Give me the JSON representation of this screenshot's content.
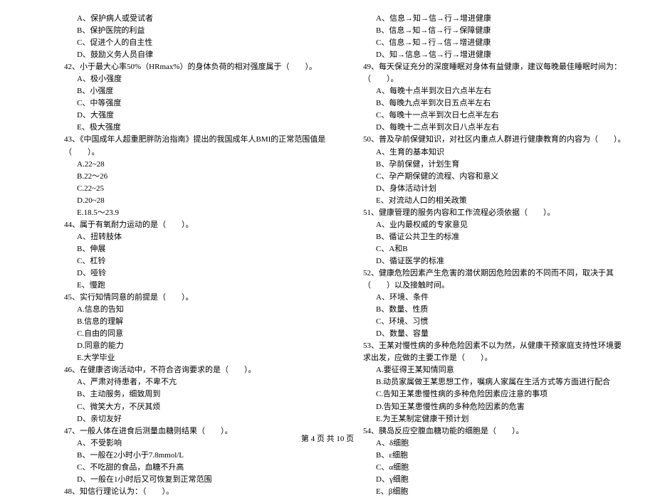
{
  "left": {
    "q41_opts": [
      "A、保护病人或受试者",
      "B、保护医院的利益",
      "C、促进个人的自主性",
      "D、鼓励义务人员自律"
    ],
    "q42": "42、小于最大心率50%（HRmax%）的身体负荷的相对强度属于（　　）。",
    "q42_opts": [
      "A、极小强度",
      "B、小强度",
      "C、中等强度",
      "D、大强度",
      "E、极大强度"
    ],
    "q43": "43、《中国成年人超重肥胖防治指南》提出的我国成年人BMI的正常范围值是（　　）。",
    "q43_opts": [
      "A.22~28",
      "B.22～26",
      "C.22~25",
      "D.20~28",
      "E.18.5～23.9"
    ],
    "q44": "44、属于有氧耐力运动的是（　　）。",
    "q44_opts": [
      "A、扭转肢体",
      "B、伸展",
      "C、杠铃",
      "D、哑铃",
      "E、慢跑"
    ],
    "q45": "45、实行知情同意的前提是（　　）。",
    "q45_opts": [
      "A.信息的告知",
      "B.信息的理解",
      "C.自由的同意",
      "D.同意的能力",
      "E.大学毕业"
    ],
    "q46": "46、在健康咨询活动中，不符合咨询要求的是（　　）。",
    "q46_opts": [
      "A、严肃对待患者，不卑不亢",
      "B、主动服务，细致周到",
      "C、微笑大方，不厌其烦",
      "D、亲切友好"
    ],
    "q47": "47、一般人体在进食后测量血糖则结果（　　）。",
    "q47_opts": [
      "A、不受影响",
      "B、一般在2小时小于7.8mmol/L",
      "C、不吃甜的食品，血糖不升高",
      "D、一般在1小时后又可恢复到正常范围"
    ],
    "q48": "48、知信行理论认为：（　　）。"
  },
  "right": {
    "q48_opts": [
      "A、信息→知→信→行→增进健康",
      "B、信息→知→信→行→保障健康",
      "C、信息→知→行→信→增进健康",
      "D、知→信息→信→行→增进健康"
    ],
    "q49": "49、每天保证充分的深度睡眠对身体有益健康，建议每晚最佳睡眠时间为：（　　）。",
    "q49_opts": [
      "A、每晚十点半到次日六点半左右",
      "B、每晚九点半到次日五点半左右",
      "C、每晚十一点半到次日七点半左右",
      "D、每晚十二点半到次日八点半左右"
    ],
    "q50": "50、普及孕前保健知识，对社区内重点人群进行健康教育的内容为（　　）。",
    "q50_opts": [
      "A、生育的基本知识",
      "B、孕前保健，计划生育",
      "C、孕产期保健的流程、内容和意义",
      "D、身体活动计划",
      "E、对流动人口的相关政策"
    ],
    "q51": "51、健康管理的服务内容和工作流程必须依据（　　）。",
    "q51_opts": [
      "A、业内最权威的专家意见",
      "B、循证公共卫生的标准",
      "C、A和B",
      "D、循证医学的标准"
    ],
    "q52": "52、健康危险因素产生危害的潜伏期因危险因素的不同而不同，取决于其（　　）以及接触时间。",
    "q52_cont": "",
    "q52_opts": [
      "A、环境、条件",
      "B、数量、性质",
      "C、环境、习惯",
      "D、数量、容量"
    ],
    "q53": "53、王某对慢性病的多种危险因素不以为然，从健康干预家庭支持性环境要求出发，应做的主要工作是（　　）。",
    "q53_cont": "",
    "q53_opts": [
      "A.要征得王某知情同意",
      "B.动员家属做王某思想工作，嘱病人家属在生活方式等方面进行配合",
      "C.告知王某患慢性病的多种危险因素应注意的事项",
      "D.告知王某患慢性病的多种危险因素的危害",
      "E.为王某制定健康干预计划"
    ],
    "q54": "54、胰岛反应空腹血糖功能的细胞是（　　）。",
    "q54_opts": [
      "A、δ细胞",
      "B、ε细胞",
      "C、α细胞",
      "D、γ细胞",
      "E、β细胞"
    ]
  },
  "footer": "第 4 页 共 10 页"
}
